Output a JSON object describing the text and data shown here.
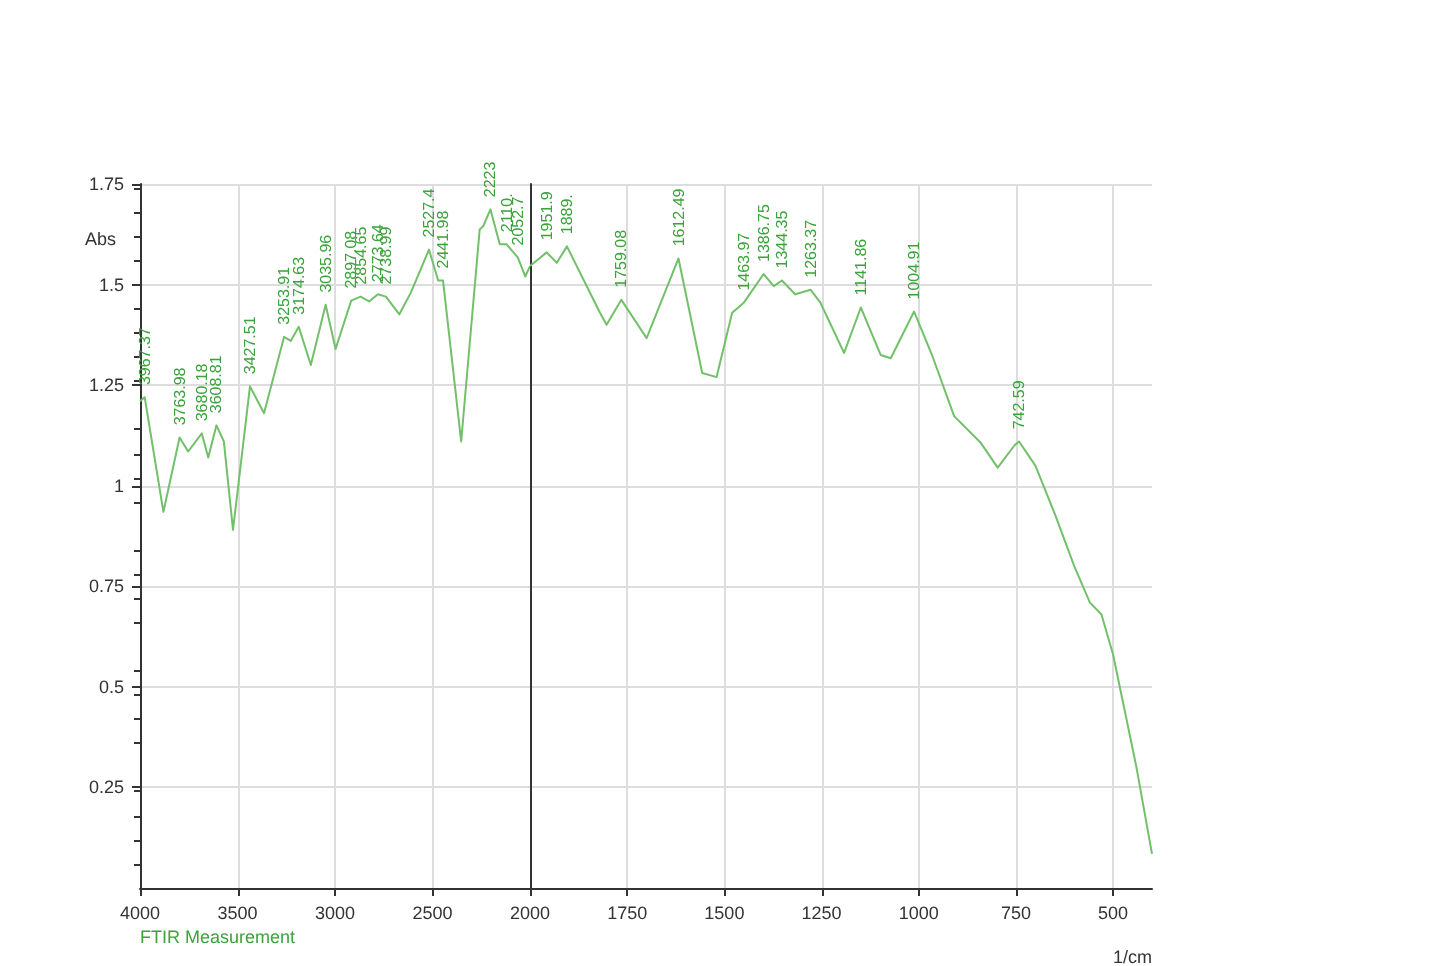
{
  "chart_data": [
    {
      "type": "line",
      "ylabel": "Abs",
      "x": [
        4000,
        3976,
        3880,
        3797,
        3753,
        3683,
        3650,
        3608,
        3570,
        3523,
        3436,
        3364,
        3261,
        3227,
        3186,
        3124,
        3048,
        2997,
        2917,
        2869,
        2825,
        2780,
        2739,
        2670,
        2611,
        2518,
        2471,
        2446,
        2353,
        2258,
        2240,
        2203,
        2155,
        2120,
        2062,
        2024,
        2000
      ],
      "series": [
        {
          "color": "#72c06a",
          "values": [
            1.21,
            1.22,
            0.935,
            1.12,
            1.085,
            1.13,
            1.07,
            1.15,
            1.11,
            0.89,
            1.247,
            1.18,
            1.37,
            1.36,
            1.395,
            1.3,
            1.45,
            1.34,
            1.46,
            1.47,
            1.458,
            1.476,
            1.47,
            1.426,
            1.48,
            1.587,
            1.51,
            1.51,
            1.11,
            1.637,
            1.645,
            1.687,
            1.6,
            1.6,
            1.567,
            1.52,
            1.546
          ]
        }
      ],
      "xlim": [
        4000,
        2000
      ],
      "xticks": [
        4000,
        3500,
        3000,
        2500,
        2000
      ],
      "ylim": [
        0,
        1.75
      ],
      "yticks": [
        0.25,
        0.5,
        0.75,
        1,
        1.25,
        1.5,
        1.75
      ],
      "grid": true,
      "marker": "none",
      "annotations": [
        {
          "text": "3967.37",
          "x": 3976,
          "y": 1.22
        },
        {
          "text": "3763.98",
          "x": 3797,
          "y": 1.12
        },
        {
          "text": "3680.18",
          "x": 3683,
          "y": 1.13
        },
        {
          "text": "3608.81",
          "x": 3608,
          "y": 1.15
        },
        {
          "text": "3427.51",
          "x": 3436,
          "y": 1.247
        },
        {
          "text": "3253.91",
          "x": 3261,
          "y": 1.37
        },
        {
          "text": "3174.63",
          "x": 3186,
          "y": 1.395
        },
        {
          "text": "3035.96",
          "x": 3048,
          "y": 1.45
        },
        {
          "text": "2897.08",
          "x": 2917,
          "y": 1.46
        },
        {
          "text": "2854.65",
          "x": 2869,
          "y": 1.47
        },
        {
          "text": "2773.64",
          "x": 2780,
          "y": 1.476
        },
        {
          "text": "2738.99",
          "x": 2739,
          "y": 1.47
        },
        {
          "text": "2527.4",
          "x": 2518,
          "y": 1.587
        },
        {
          "text": "2441.98",
          "x": 2446,
          "y": 1.51
        },
        {
          "text": "2223",
          "x": 2203,
          "y": 1.687
        },
        {
          "text": "2110.",
          "x": 2120,
          "y": 1.6
        },
        {
          "text": "2052.7",
          "x": 2062,
          "y": 1.567
        },
        "FTIR Measurement"
      ]
    },
    {
      "type": "line",
      "xlabel": "1/cm",
      "x": [
        2000,
        1957,
        1931,
        1905,
        1820,
        1803,
        1765,
        1700,
        1618,
        1557,
        1520,
        1480,
        1450,
        1399,
        1373,
        1352,
        1318,
        1278,
        1253,
        1192,
        1149,
        1098,
        1072,
        1012,
        964,
        909,
        840,
        797,
        754,
        742,
        700,
        650,
        600,
        560,
        530,
        500,
        470,
        440,
        400
      ],
      "series": [
        {
          "color": "#72c06a",
          "values": [
            1.546,
            1.58,
            1.554,
            1.595,
            1.43,
            1.4,
            1.462,
            1.367,
            1.565,
            1.28,
            1.27,
            1.43,
            1.455,
            1.526,
            1.496,
            1.51,
            1.476,
            1.487,
            1.455,
            1.33,
            1.443,
            1.325,
            1.317,
            1.433,
            1.32,
            1.173,
            1.106,
            1.045,
            1.1,
            1.11,
            1.05,
            0.93,
            0.8,
            0.71,
            0.68,
            0.58,
            0.44,
            0.3,
            0.085
          ]
        }
      ],
      "xlim": [
        2000,
        400
      ],
      "xticks": [
        1750,
        1500,
        1250,
        1000,
        750,
        500
      ],
      "ylim": [
        0,
        1.75
      ],
      "yticks": [
        0.25,
        0.5,
        0.75,
        1,
        1.25,
        1.5,
        1.75
      ],
      "grid": true,
      "marker": "none",
      "tick_labels": "x",
      "annotations": [
        {
          "text": "1951.9",
          "x": 1957,
          "y": 1.58
        },
        {
          "text": "1889.",
          "x": 1905,
          "y": 1.595
        },
        {
          "text": "1759.08",
          "x": 1765,
          "y": 1.462
        },
        {
          "text": "1612.49",
          "x": 1618,
          "y": 1.565
        },
        {
          "text": "1463.97",
          "x": 1450,
          "y": 1.455
        },
        {
          "text": "1386.75",
          "x": 1399,
          "y": 1.526
        },
        {
          "text": "1344.35",
          "x": 1352,
          "y": 1.51
        },
        {
          "text": "1263.37",
          "x": 1278,
          "y": 1.487
        },
        {
          "text": "1141.86",
          "x": 1149,
          "y": 1.443
        },
        {
          "text": "1004.91",
          "x": 1012,
          "y": 1.433
        },
        {
          "text": "742.59",
          "x": 742,
          "y": 1.11
        }
      ]
    }
  ]
}
